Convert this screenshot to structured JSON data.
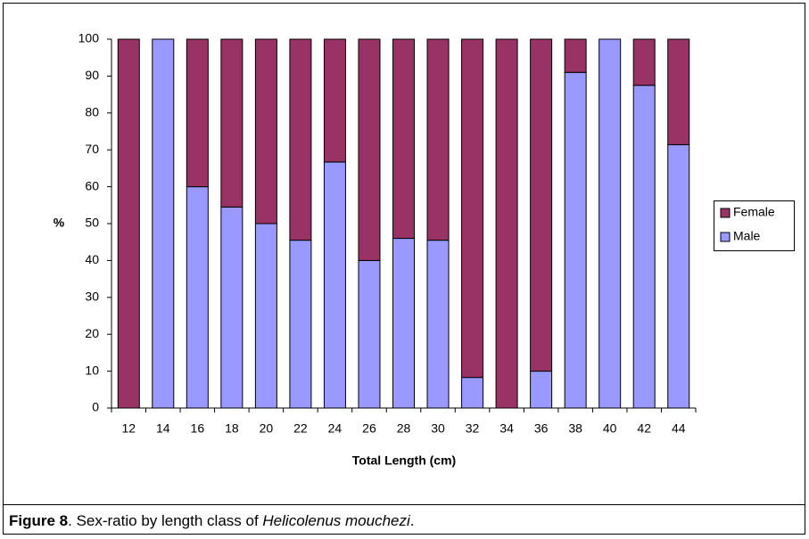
{
  "chart_data": {
    "type": "stacked_bar",
    "x_label": "Total Length (cm)",
    "y_label": "%",
    "categories": [
      "12",
      "14",
      "16",
      "18",
      "20",
      "22",
      "24",
      "26",
      "28",
      "30",
      "32",
      "34",
      "36",
      "38",
      "40",
      "42",
      "44"
    ],
    "series": [
      {
        "name": "Male",
        "color": "#9999ff",
        "values": [
          0,
          100,
          60,
          54.5,
          50,
          45.5,
          66.7,
          40,
          46,
          45.5,
          8.3,
          0,
          10,
          91,
          100,
          87.5,
          71.4
        ]
      },
      {
        "name": "Female",
        "color": "#993366",
        "values": [
          100,
          0,
          40,
          45.5,
          50,
          54.5,
          33.3,
          60,
          54,
          54.5,
          91.7,
          100,
          90,
          9,
          0,
          12.5,
          28.6
        ]
      }
    ],
    "ylim": [
      0,
      100
    ],
    "yticks": [
      0,
      10,
      20,
      30,
      40,
      50,
      60,
      70,
      80,
      90,
      100
    ],
    "grid": false,
    "legend": "right",
    "caption": {
      "label": "Figure 8",
      "text": ". Sex-ratio by length class of ",
      "species": "Helicolenus mouchezi",
      "end": "."
    }
  }
}
